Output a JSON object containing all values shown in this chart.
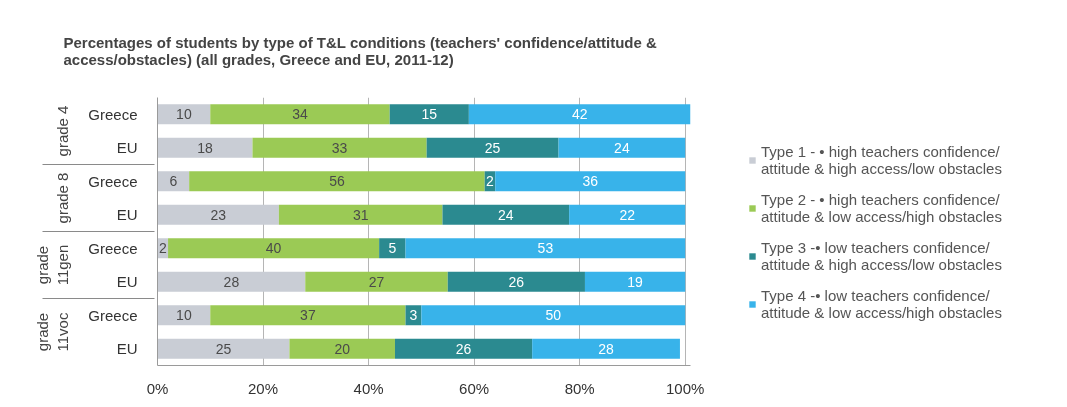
{
  "chart_data": {
    "type": "bar",
    "orientation": "horizontal",
    "stacked": true,
    "title": "Percentages of students by type of T&L conditions (teachers' confidence/attitude & access/obstacles) (all grades, Greece and EU, 2011-12)",
    "categories": [
      "Greece",
      "EU",
      "Greece",
      "EU",
      "Greece",
      "EU",
      "Greece",
      "EU"
    ],
    "annotations": [
      "grade 4",
      "grade 8",
      "grade 11gen",
      "grade 11voc"
    ],
    "series": [
      {
        "name": "Type 1 - • high teachers confidence/ attitude & high access/low obstacles",
        "color": "#c9cdd5",
        "values": [
          10,
          18,
          6,
          23,
          2,
          28,
          10,
          25
        ]
      },
      {
        "name": "Type 2 - • high teachers confidence/ attitude & low access/high obstacles",
        "color": "#9bca55",
        "values": [
          34,
          33,
          56,
          31,
          40,
          27,
          37,
          20
        ]
      },
      {
        "name": "Type 3 -• low teachers confidence/ attitude & high access/low obstacles",
        "color": "#2b8a90",
        "values": [
          15,
          25,
          2,
          24,
          5,
          26,
          3,
          26
        ]
      },
      {
        "name": "Type 4 -• low teachers confidence/ attitude & low access/high obstacles",
        "color": "#38b3ea",
        "values": [
          42,
          24,
          36,
          22,
          53,
          19,
          50,
          28
        ]
      }
    ],
    "xlim": [
      0,
      101
    ],
    "xticks": [
      {
        "value": 0,
        "label": "0%"
      },
      {
        "value": 20,
        "label": "20%"
      },
      {
        "value": 40,
        "label": "40%"
      },
      {
        "value": 60,
        "label": "60%"
      },
      {
        "value": 80,
        "label": "80%"
      },
      {
        "value": 100,
        "label": "100%"
      }
    ],
    "grid": "x",
    "legend": "right",
    "data_labels": true
  }
}
